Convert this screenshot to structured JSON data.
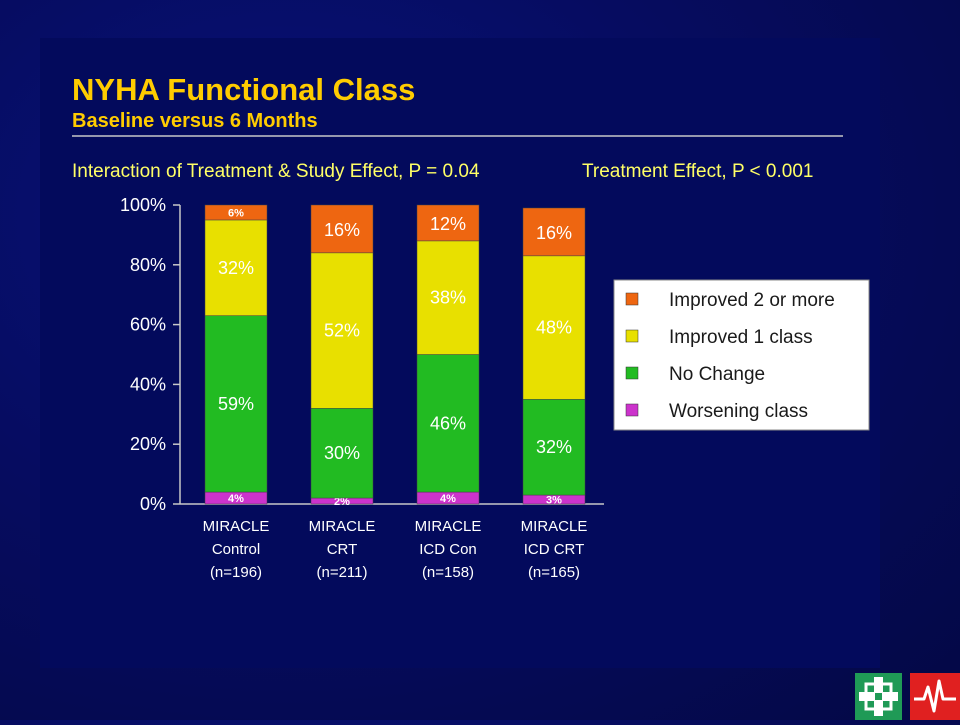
{
  "slide": {
    "title": "NYHA Functional Class",
    "subtitle": "Baseline versus 6 Months",
    "note_left": "Interaction of Treatment & Study Effect, P = 0.04",
    "note_right": "Treatment Effect, P < 0.001"
  },
  "colors": {
    "worsening": "#cc33cc",
    "no_change": "#22bb22",
    "improved_1": "#e8e000",
    "improved_2": "#ee6611"
  },
  "chart_data": {
    "type": "bar",
    "stacked": true,
    "categories": [
      [
        "MIRACLE",
        "Control",
        "(n=196)"
      ],
      [
        "MIRACLE",
        "CRT",
        "(n=211)"
      ],
      [
        "MIRACLE",
        "ICD Con",
        "(n=158)"
      ],
      [
        "MIRACLE",
        "ICD CRT",
        "(n=165)"
      ]
    ],
    "series": [
      {
        "name": "Worsening class",
        "color_key": "worsening",
        "values": [
          4,
          2,
          4,
          3
        ],
        "labels": [
          "4%",
          "2%",
          "4%",
          "3%"
        ]
      },
      {
        "name": "No Change",
        "color_key": "no_change",
        "values": [
          59,
          30,
          46,
          32
        ],
        "labels": [
          "59%",
          "30%",
          "46%",
          "32%"
        ]
      },
      {
        "name": "Improved 1 class",
        "color_key": "improved_1",
        "values": [
          32,
          52,
          38,
          48
        ],
        "labels": [
          "32%",
          "52%",
          "38%",
          "48%"
        ]
      },
      {
        "name": "Improved 2 or more",
        "color_key": "improved_2",
        "values": [
          6,
          16,
          12,
          16
        ],
        "labels": [
          "6%",
          "16%",
          "12%",
          "16%"
        ]
      }
    ],
    "y_ticks": [
      "0%",
      "20%",
      "40%",
      "60%",
      "80%",
      "100%"
    ],
    "ylim": [
      0,
      100
    ],
    "legend": {
      "placement": "right",
      "entries": [
        {
          "label": "Improved 2 or more",
          "color_key": "improved_2"
        },
        {
          "label": "Improved 1 class",
          "color_key": "improved_1"
        },
        {
          "label": "No Change",
          "color_key": "no_change"
        },
        {
          "label": "Worsening class",
          "color_key": "worsening"
        }
      ]
    }
  },
  "logos": [
    {
      "icon": "cross-grid-logo-icon"
    },
    {
      "icon": "heartbeat-logo-icon"
    }
  ]
}
